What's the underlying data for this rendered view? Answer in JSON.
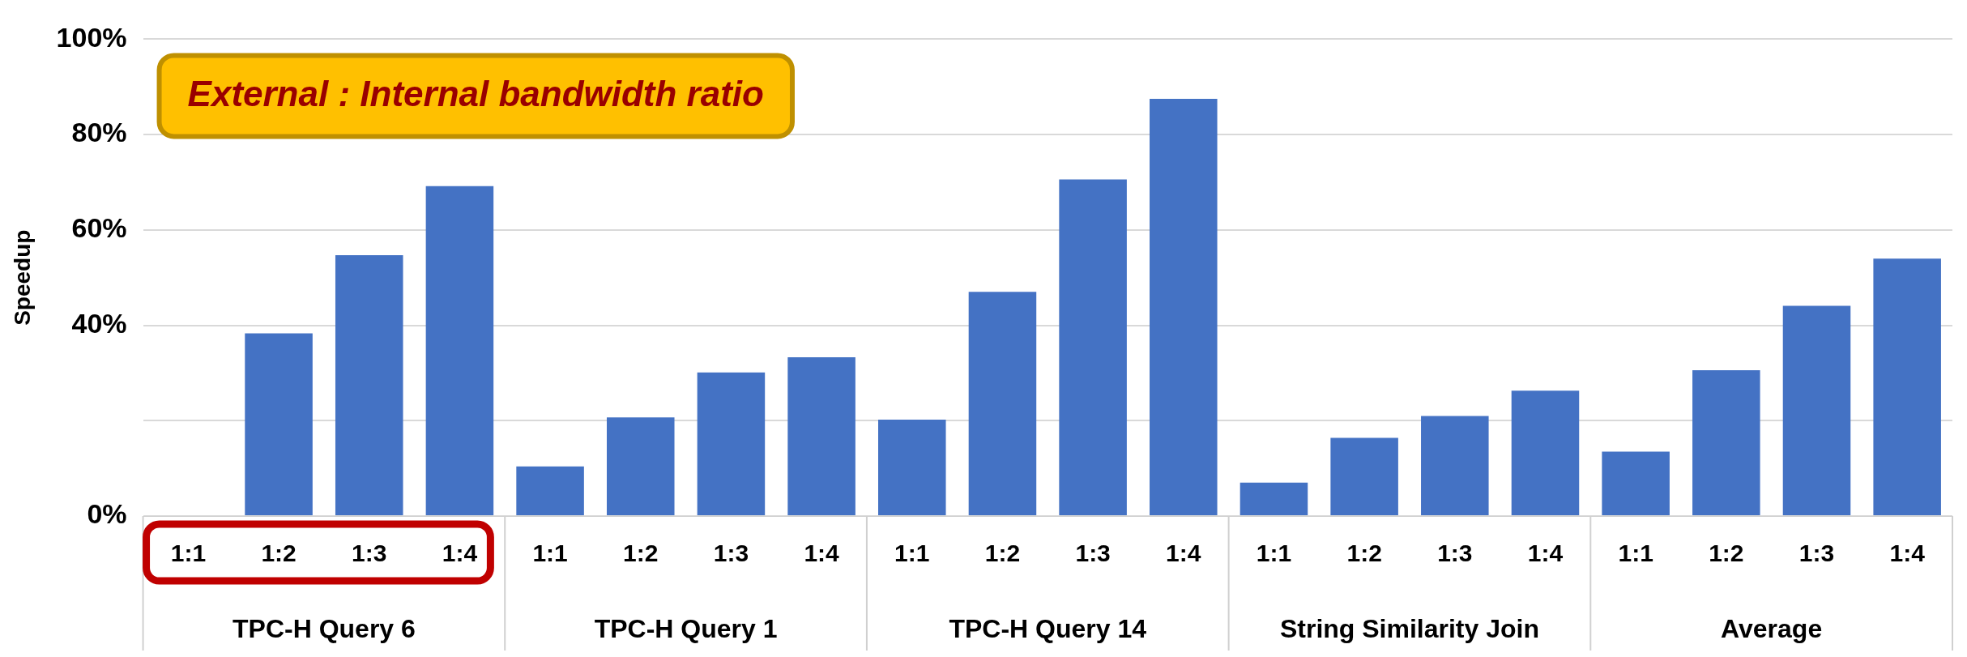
{
  "chart_data": {
    "type": "bar",
    "ylabel": "Speedup",
    "categories": [
      "1:1",
      "1:2",
      "1:3",
      "1:4",
      "1:1",
      "1:2",
      "1:3",
      "1:4",
      "1:1",
      "1:2",
      "1:3",
      "1:4",
      "1:1",
      "1:2",
      "1:3",
      "1:4",
      "1:1",
      "1:2",
      "1:3",
      "1:4"
    ],
    "values": [
      null,
      38.3,
      54.7,
      69.2,
      10.4,
      20.7,
      30.1,
      33.3,
      20.2,
      47,
      70.6,
      87.5,
      7,
      16.4,
      21,
      26.3,
      13.5,
      30.6,
      44.1,
      54
    ],
    "color": "#4472c4",
    "ylim": [
      0,
      100
    ],
    "yticks": [
      {
        "value": 0,
        "label": "0%"
      },
      {
        "value": 20,
        "label": null
      },
      {
        "value": 40,
        "label": "40%"
      },
      {
        "value": 60,
        "label": "60%"
      },
      {
        "value": 80,
        "label": "80%"
      },
      {
        "value": 100,
        "label": "100%"
      }
    ],
    "grid": "y",
    "legend": false,
    "annotations": [
      "TPC-H Query 6",
      "TPC-H Query 1",
      "TPC-H Query 14",
      "String Similarity Join",
      "Average",
      "External : Internal bandwidth ratio"
    ]
  }
}
